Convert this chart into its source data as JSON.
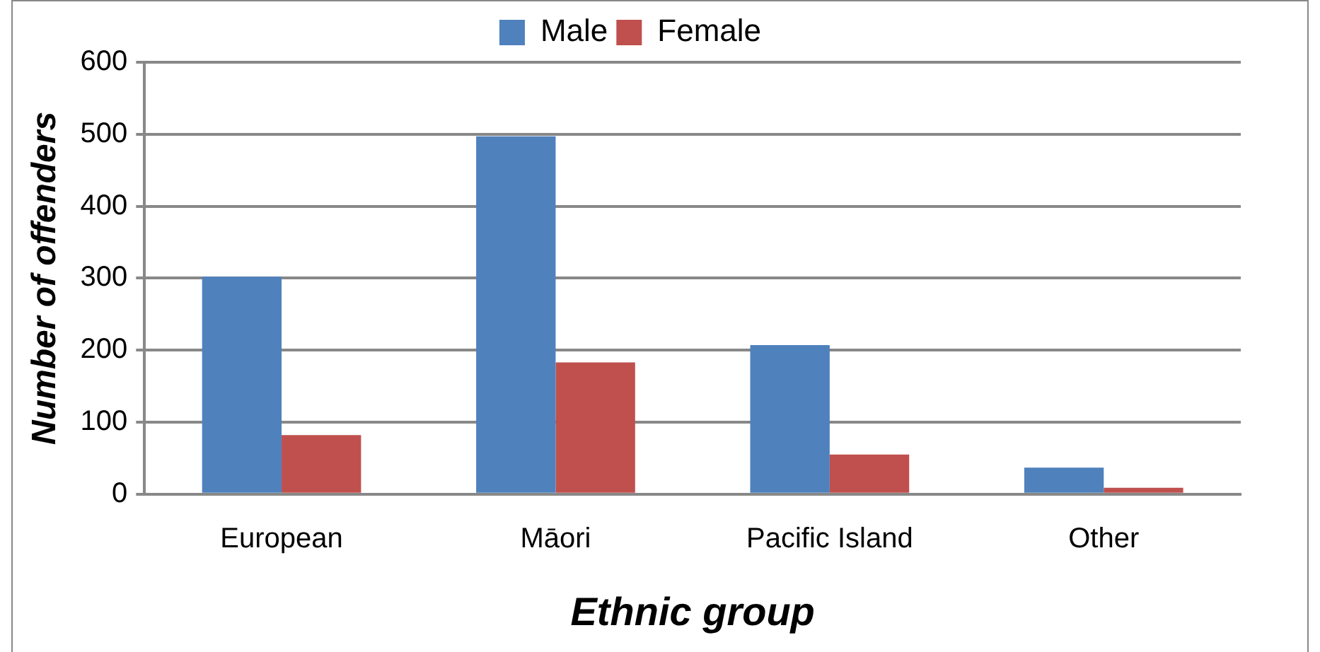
{
  "chart_data": {
    "type": "bar",
    "xlabel": "Ethnic group",
    "ylabel": "Number of offenders",
    "categories": [
      "European",
      "Māori",
      "Pacific Island",
      "Other"
    ],
    "series": [
      {
        "name": "Male",
        "color": "#4f81bd",
        "values": [
          302,
          497,
          207,
          37
        ]
      },
      {
        "name": "Female",
        "color": "#c0504d",
        "values": [
          82,
          183,
          55,
          9
        ]
      }
    ],
    "ylim": [
      0,
      600
    ],
    "yticks": [
      0,
      100,
      200,
      300,
      400,
      500,
      600
    ],
    "grid": "y",
    "legend": "top"
  }
}
